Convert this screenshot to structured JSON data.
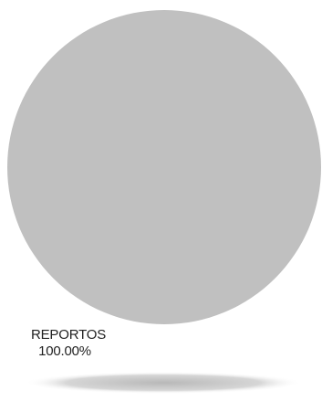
{
  "chart_data": {
    "type": "pie",
    "title": "",
    "slices": [
      {
        "label": "REPORTOS",
        "value": 100.0,
        "percent_label": "100.00%",
        "color": "#c0c0c0"
      }
    ],
    "legend": "none"
  },
  "colors": {
    "shadow": "#c8c8c8",
    "background": "#ffffff"
  }
}
